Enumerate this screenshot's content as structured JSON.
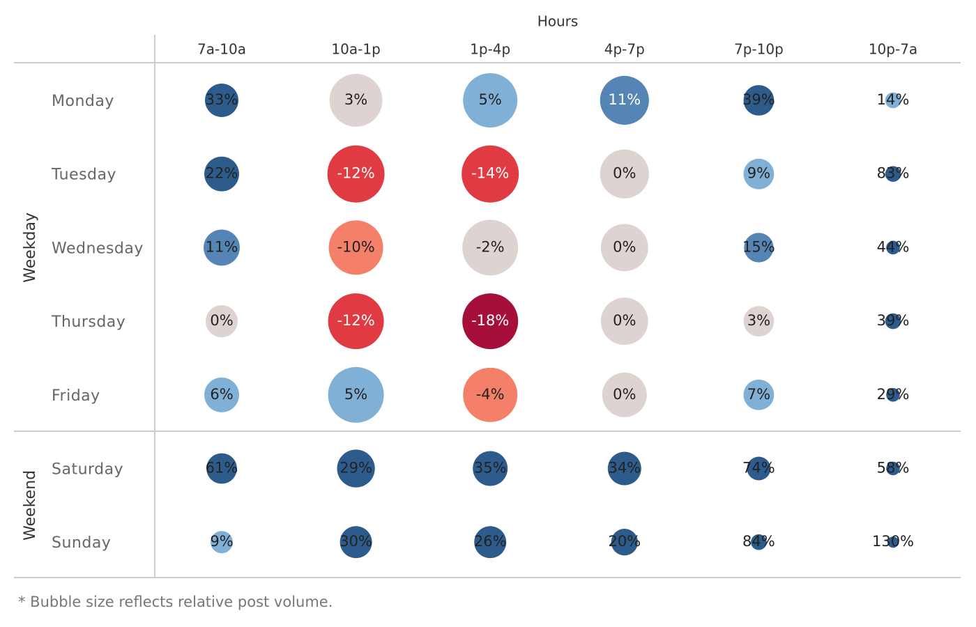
{
  "chart_data": {
    "type": "bubble-matrix",
    "x_label": "Hours",
    "categories": [
      "7a-10a",
      "10a-1p",
      "1p-4p",
      "4p-7p",
      "7p-10p",
      "10p-7a"
    ],
    "groups": [
      {
        "name": "Weekday",
        "rows": [
          0,
          1,
          2,
          3,
          4
        ]
      },
      {
        "name": "Weekend",
        "rows": [
          5,
          6
        ]
      }
    ],
    "series": [
      {
        "name": "Monday",
        "values": [
          33,
          3,
          5,
          11,
          39,
          14
        ],
        "value_labels": [
          "33%",
          "3%",
          "5%",
          "11%",
          "39%",
          "14%"
        ],
        "sizes": [
          36,
          90,
          95,
          77,
          30,
          8
        ],
        "colors": [
          "#2d5b8c",
          "#ddd3d1",
          "#80b0d6",
          "#5585b5",
          "#2d5b8c",
          "#80b0d6"
        ]
      },
      {
        "name": "Tuesday",
        "values": [
          22,
          -12,
          -14,
          0,
          9,
          83
        ],
        "value_labels": [
          "22%",
          "-12%",
          "-14%",
          "0%",
          "9%",
          "83%"
        ],
        "sizes": [
          39,
          105,
          105,
          77,
          30,
          8
        ],
        "colors": [
          "#2d5b8c",
          "#e03b42",
          "#e03b42",
          "#ddd3d1",
          "#80b0d6",
          "#2d5b8c"
        ]
      },
      {
        "name": "Wednesday",
        "values": [
          11,
          -10,
          -2,
          0,
          15,
          44
        ],
        "value_labels": [
          "11%",
          "-10%",
          "-2%",
          "0%",
          "15%",
          "44%"
        ],
        "sizes": [
          42,
          95,
          100,
          72,
          28,
          6
        ],
        "colors": [
          "#5585b5",
          "#f4806a",
          "#ddd3d1",
          "#ddd3d1",
          "#5585b5",
          "#2d5b8c"
        ]
      },
      {
        "name": "Thursday",
        "values": [
          0,
          -12,
          -18,
          0,
          3,
          39
        ],
        "value_labels": [
          "0%",
          "-12%",
          "-18%",
          "0%",
          "3%",
          "39%"
        ],
        "sizes": [
          33,
          100,
          100,
          72,
          30,
          8
        ],
        "colors": [
          "#ddd3d1",
          "#e03b42",
          "#a50f3a",
          "#ddd3d1",
          "#ddd3d1",
          "#2d5b8c"
        ]
      },
      {
        "name": "Friday",
        "values": [
          6,
          5,
          -4,
          0,
          7,
          29
        ],
        "value_labels": [
          "6%",
          "5%",
          "-4%",
          "0%",
          "7%",
          "29%"
        ],
        "sizes": [
          39,
          100,
          95,
          64,
          30,
          6
        ],
        "colors": [
          "#80b0d6",
          "#80b0d6",
          "#f4806a",
          "#ddd3d1",
          "#80b0d6",
          "#2d5b8c"
        ]
      },
      {
        "name": "Saturday",
        "values": [
          61,
          29,
          35,
          34,
          74,
          58
        ],
        "value_labels": [
          "61%",
          "29%",
          "35%",
          "34%",
          "74%",
          "58%"
        ],
        "sizes": [
          30,
          46,
          39,
          36,
          18,
          6
        ],
        "colors": [
          "#2d5b8c",
          "#2d5b8c",
          "#2d5b8c",
          "#2d5b8c",
          "#2d5b8c",
          "#2d5b8c"
        ]
      },
      {
        "name": "Sunday",
        "values": [
          9,
          30,
          26,
          20,
          84,
          130
        ],
        "value_labels": [
          "9%",
          "30%",
          "26%",
          "20%",
          "84%",
          "130%"
        ],
        "sizes": [
          16,
          33,
          33,
          23,
          8,
          4
        ],
        "colors": [
          "#80b0d6",
          "#2d5b8c",
          "#2d5b8c",
          "#2d5b8c",
          "#2d5b8c",
          "#2d5b8c"
        ]
      }
    ],
    "note": "* Bubble size reflects relative post volume."
  }
}
